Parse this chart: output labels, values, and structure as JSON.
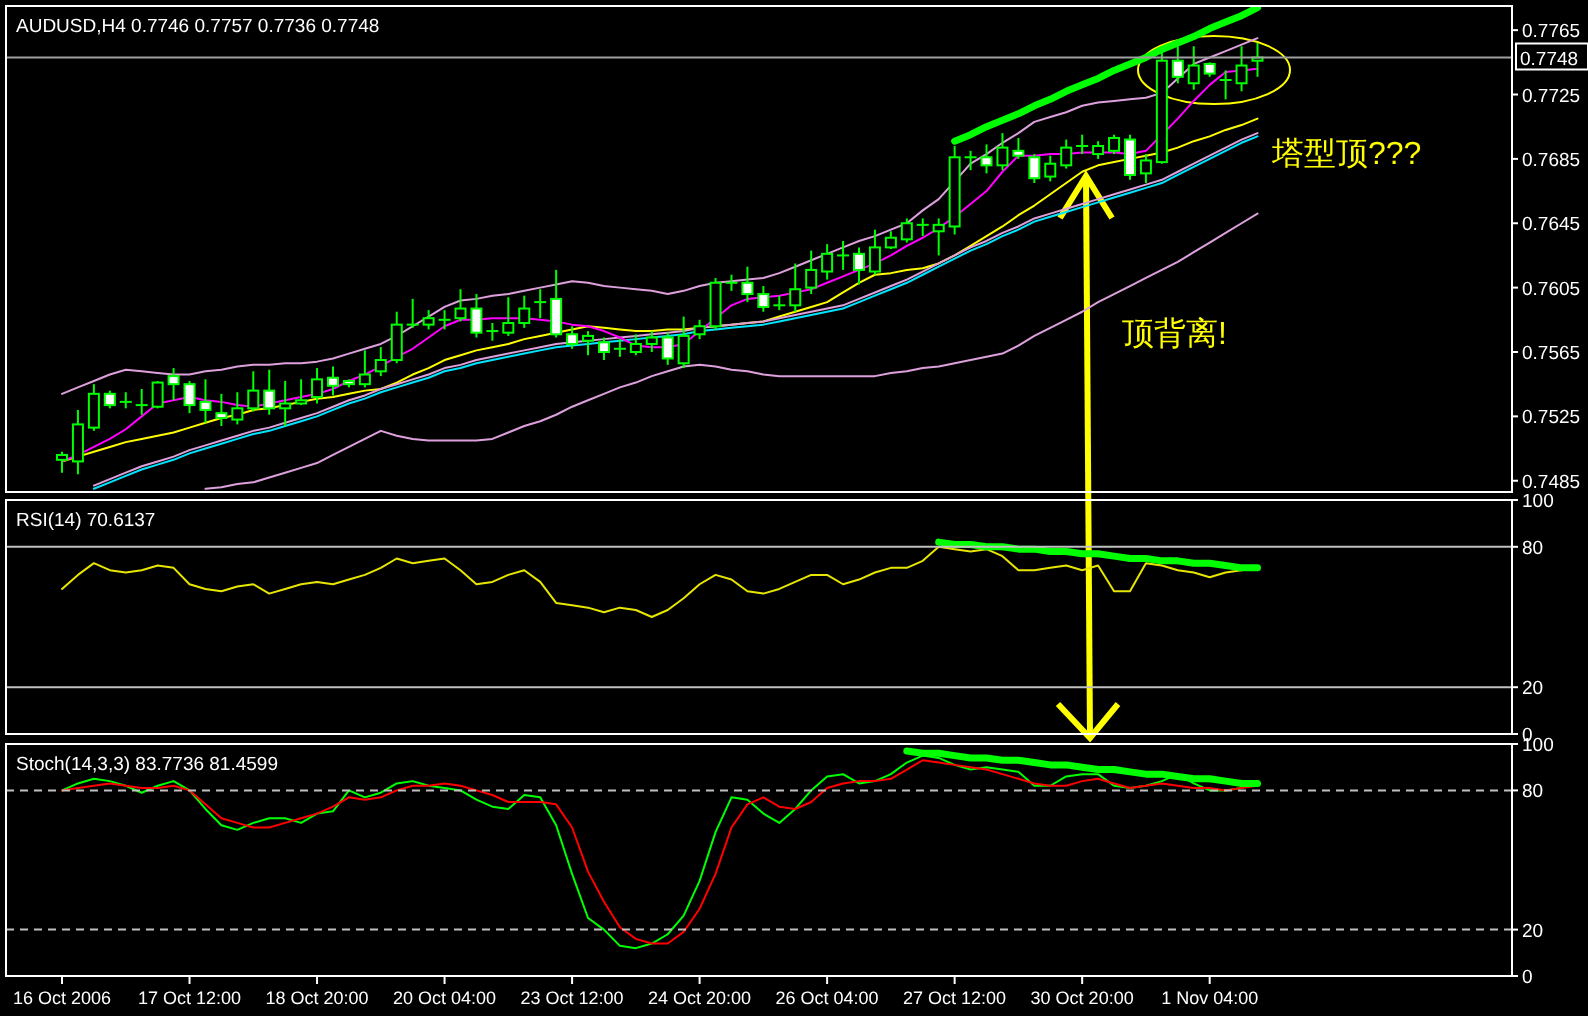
{
  "chart_data": [
    {
      "type": "candlestick",
      "title": "AUDUSD,H4 0.7746 0.7757 0.7736 0.7748",
      "color": "#00ff00",
      "categories": [
        null,
        null,
        null,
        null,
        null,
        null,
        null,
        null,
        null,
        null,
        null,
        null,
        null,
        null,
        null,
        null,
        null,
        null,
        null,
        null,
        null,
        null,
        null,
        null,
        null,
        null,
        null,
        null,
        null,
        null,
        null,
        null,
        null,
        null,
        null,
        null,
        null,
        null,
        null,
        null,
        null,
        null,
        null,
        null,
        null,
        null,
        null,
        null,
        null,
        null,
        null,
        null,
        null,
        null,
        null,
        null,
        null,
        null,
        null,
        null,
        null,
        null,
        null,
        null,
        null,
        null,
        null,
        null,
        null,
        null,
        null,
        null,
        null,
        null,
        null,
        null
      ],
      "ohlc": [
        [
          0.7498,
          0.7503,
          0.749,
          0.7501
        ],
        [
          0.7497,
          0.7529,
          0.7489,
          0.752
        ],
        [
          0.7518,
          0.7545,
          0.7516,
          0.7539
        ],
        [
          0.7539,
          0.7541,
          0.753,
          0.7532
        ],
        [
          0.7534,
          0.754,
          0.753,
          0.7533
        ],
        [
          0.7531,
          0.7542,
          0.7526,
          0.7532
        ],
        [
          0.7531,
          0.7547,
          0.753,
          0.7546
        ],
        [
          0.755,
          0.7555,
          0.7535,
          0.7545
        ],
        [
          0.7545,
          0.7547,
          0.7527,
          0.7532
        ],
        [
          0.7534,
          0.7548,
          0.7521,
          0.7529
        ],
        [
          0.7527,
          0.7539,
          0.7519,
          0.7524
        ],
        [
          0.7523,
          0.754,
          0.752,
          0.753
        ],
        [
          0.753,
          0.7553,
          0.7528,
          0.7541
        ],
        [
          0.7541,
          0.7554,
          0.7526,
          0.753
        ],
        [
          0.753,
          0.7547,
          0.7519,
          0.7533
        ],
        [
          0.7533,
          0.7548,
          0.7532,
          0.7535
        ],
        [
          0.7537,
          0.7555,
          0.7533,
          0.7548
        ],
        [
          0.7549,
          0.7556,
          0.7538,
          0.7544
        ],
        [
          0.7547,
          0.7548,
          0.7543,
          0.7545
        ],
        [
          0.7545,
          0.7566,
          0.7543,
          0.7551
        ],
        [
          0.7553,
          0.7568,
          0.755,
          0.756
        ],
        [
          0.756,
          0.759,
          0.7558,
          0.7582
        ],
        [
          0.7581,
          0.7598,
          0.758,
          0.7582
        ],
        [
          0.7582,
          0.7591,
          0.7579,
          0.7586
        ],
        [
          0.7585,
          0.7591,
          0.7579,
          0.7584
        ],
        [
          0.7586,
          0.7604,
          0.7584,
          0.7592
        ],
        [
          0.7592,
          0.7601,
          0.7574,
          0.7577
        ],
        [
          0.7577,
          0.7583,
          0.7572,
          0.7578
        ],
        [
          0.7577,
          0.7599,
          0.7575,
          0.7583
        ],
        [
          0.7583,
          0.76,
          0.758,
          0.7592
        ],
        [
          0.7596,
          0.7604,
          0.7586,
          0.7596
        ],
        [
          0.7598,
          0.7616,
          0.7574,
          0.7576
        ],
        [
          0.7576,
          0.7581,
          0.7567,
          0.757
        ],
        [
          0.7572,
          0.7578,
          0.7563,
          0.7575
        ],
        [
          0.7571,
          0.7574,
          0.756,
          0.7565
        ],
        [
          0.7567,
          0.7573,
          0.7562,
          0.7567
        ],
        [
          0.7565,
          0.7576,
          0.7563,
          0.757
        ],
        [
          0.757,
          0.7578,
          0.7565,
          0.7574
        ],
        [
          0.7574,
          0.7577,
          0.7557,
          0.7561
        ],
        [
          0.7558,
          0.7587,
          0.7555,
          0.7575
        ],
        [
          0.7576,
          0.7585,
          0.7573,
          0.7581
        ],
        [
          0.7581,
          0.7611,
          0.7579,
          0.7608
        ],
        [
          0.7607,
          0.7613,
          0.7603,
          0.7608
        ],
        [
          0.7608,
          0.7618,
          0.7596,
          0.7601
        ],
        [
          0.7601,
          0.7606,
          0.759,
          0.7593
        ],
        [
          0.7593,
          0.76,
          0.7591,
          0.7594
        ],
        [
          0.7594,
          0.762,
          0.759,
          0.7604
        ],
        [
          0.7605,
          0.7628,
          0.7601,
          0.7616
        ],
        [
          0.7615,
          0.7632,
          0.761,
          0.7626
        ],
        [
          0.7625,
          0.7634,
          0.7616,
          0.7624
        ],
        [
          0.7626,
          0.763,
          0.7607,
          0.7616
        ],
        [
          0.7615,
          0.7641,
          0.7613,
          0.763
        ],
        [
          0.763,
          0.764,
          0.7629,
          0.7636
        ],
        [
          0.7635,
          0.7648,
          0.7633,
          0.7645
        ],
        [
          0.7644,
          0.7648,
          0.7637,
          0.7643
        ],
        [
          0.764,
          0.7648,
          0.7625,
          0.7644
        ],
        [
          0.7643,
          0.7693,
          0.7638,
          0.7686
        ],
        [
          0.7686,
          0.769,
          0.7678,
          0.7685
        ],
        [
          0.7686,
          0.7694,
          0.7676,
          0.7681
        ],
        [
          0.7681,
          0.7701,
          0.7678,
          0.7692
        ],
        [
          0.769,
          0.7698,
          0.7685,
          0.7687
        ],
        [
          0.7686,
          0.7688,
          0.767,
          0.7673
        ],
        [
          0.7674,
          0.7687,
          0.7671,
          0.7682
        ],
        [
          0.7681,
          0.7697,
          0.7679,
          0.7692
        ],
        [
          0.7693,
          0.77,
          0.7688,
          0.7693
        ],
        [
          0.7688,
          0.7696,
          0.7685,
          0.7693
        ],
        [
          0.769,
          0.77,
          0.7688,
          0.7698
        ],
        [
          0.7697,
          0.77,
          0.7672,
          0.7675
        ],
        [
          0.7676,
          0.7688,
          0.767,
          0.7684
        ],
        [
          0.7683,
          0.7755,
          0.7682,
          0.7746
        ],
        [
          0.7746,
          0.7755,
          0.7732,
          0.7736
        ],
        [
          0.7732,
          0.7755,
          0.7728,
          0.7743
        ],
        [
          0.7744,
          0.7745,
          0.7736,
          0.7738
        ],
        [
          0.7734,
          0.774,
          0.7722,
          0.7733
        ],
        [
          0.7732,
          0.7755,
          0.7727,
          0.7743
        ],
        [
          0.7746,
          0.7757,
          0.7736,
          0.7748
        ]
      ],
      "series": [
        {
          "type": "line",
          "color": "#dda0dd",
          "values": [
            0.7539,
            0.7543,
            0.7547,
            0.7551,
            0.7554,
            0.7553,
            0.7552,
            0.7551,
            0.7551,
            0.7553,
            0.7554,
            0.7556,
            0.7557,
            0.7557,
            0.7558,
            0.7558,
            0.7559,
            0.7561,
            0.7564,
            0.7567,
            0.757,
            0.7575,
            0.7581,
            0.7587,
            0.7593,
            0.7597,
            0.7598,
            0.76,
            0.7601,
            0.7603,
            0.7605,
            0.7607,
            0.7609,
            0.7608,
            0.7606,
            0.7605,
            0.7604,
            0.7603,
            0.7601,
            0.7603,
            0.7606,
            0.7608,
            0.7609,
            0.761,
            0.7611,
            0.7614,
            0.7618,
            0.7622,
            0.7626,
            0.763,
            0.7634,
            0.7637,
            0.7641,
            0.7645,
            0.7653,
            0.766,
            0.7671,
            0.7682,
            0.7688,
            0.7695,
            0.7701,
            0.7708,
            0.7711,
            0.7714,
            0.7718,
            0.772,
            0.7721,
            0.7722,
            0.7723,
            0.7726,
            0.7735,
            0.7744,
            0.7748,
            0.7752,
            0.7756,
            0.776
          ]
        },
        {
          "type": "line",
          "color": "#dda0dd",
          "values": [
            null,
            null,
            null,
            null,
            null,
            null,
            null,
            null,
            null,
            0.748,
            0.7481,
            0.7483,
            0.7484,
            0.7487,
            0.749,
            0.7493,
            0.7496,
            0.7501,
            0.7506,
            0.7511,
            0.7516,
            0.7513,
            0.7511,
            0.751,
            0.751,
            0.751,
            0.751,
            0.7511,
            0.7515,
            0.7519,
            0.7522,
            0.7526,
            0.7531,
            0.7535,
            0.7539,
            0.7543,
            0.7546,
            0.755,
            0.7553,
            0.7556,
            0.7557,
            0.7556,
            0.7554,
            0.7553,
            0.7551,
            0.755,
            0.755,
            0.755,
            0.755,
            0.755,
            0.755,
            0.755,
            0.7552,
            0.7553,
            0.7555,
            0.7556,
            0.7558,
            0.756,
            0.7562,
            0.7564,
            0.7569,
            0.7575,
            0.758,
            0.7585,
            0.759,
            0.7596,
            0.7601,
            0.7606,
            0.7611,
            0.7616,
            0.7621,
            0.7627,
            0.7633,
            0.7639,
            0.7645,
            0.7651
          ]
        },
        {
          "type": "line",
          "color": "#ffff00",
          "values": [
            0.7497,
            0.75,
            0.7503,
            0.7506,
            0.7509,
            0.7511,
            0.7513,
            0.7515,
            0.7518,
            0.7521,
            0.7524,
            0.7526,
            0.7529,
            0.753,
            0.7532,
            0.7534,
            0.7536,
            0.7537,
            0.7539,
            0.7541,
            0.7542,
            0.7546,
            0.7551,
            0.7555,
            0.756,
            0.7563,
            0.7566,
            0.7568,
            0.757,
            0.7573,
            0.7575,
            0.7577,
            0.7579,
            0.7581,
            0.758,
            0.7579,
            0.7578,
            0.7578,
            0.7579,
            0.7579,
            0.758,
            0.7581,
            0.7582,
            0.7583,
            0.7584,
            0.7587,
            0.759,
            0.7593,
            0.7596,
            0.7602,
            0.7608,
            0.7613,
            0.7614,
            0.7616,
            0.7617,
            0.762,
            0.7625,
            0.7631,
            0.7637,
            0.7643,
            0.765,
            0.7656,
            0.7663,
            0.767,
            0.7677,
            0.7681,
            0.7683,
            0.7685,
            0.7687,
            0.7689,
            0.7692,
            0.7696,
            0.7699,
            0.7703,
            0.7706,
            0.771
          ]
        },
        {
          "type": "line",
          "color": "#dda0dd",
          "values": [
            null,
            null,
            0.7482,
            0.7486,
            0.749,
            0.7494,
            0.7497,
            0.75,
            0.7504,
            0.7507,
            0.751,
            0.7513,
            0.7516,
            0.7518,
            0.7521,
            0.7524,
            0.7527,
            0.7531,
            0.7535,
            0.7538,
            0.7542,
            0.7545,
            0.7548,
            0.7551,
            0.7555,
            0.7557,
            0.756,
            0.7562,
            0.7564,
            0.7566,
            0.7568,
            0.757,
            0.7571,
            0.7572,
            0.7573,
            0.7574,
            0.7575,
            0.7576,
            0.7577,
            0.7578,
            0.758,
            0.7581,
            0.7582,
            0.7583,
            0.7584,
            0.7586,
            0.7588,
            0.759,
            0.7592,
            0.7594,
            0.7598,
            0.7602,
            0.7606,
            0.761,
            0.7615,
            0.762,
            0.7625,
            0.763,
            0.7634,
            0.7639,
            0.7643,
            0.7648,
            0.7651,
            0.7654,
            0.7657,
            0.766,
            0.7663,
            0.7666,
            0.7669,
            0.7672,
            0.7677,
            0.7682,
            0.7687,
            0.7692,
            0.7697,
            0.7701
          ]
        },
        {
          "type": "line",
          "color": "#00e5ff",
          "values": [
            null,
            null,
            0.748,
            0.7484,
            0.7488,
            0.7492,
            0.7495,
            0.7498,
            0.7502,
            0.7505,
            0.7508,
            0.7511,
            0.7514,
            0.7516,
            0.7519,
            0.7522,
            0.7525,
            0.7529,
            0.7533,
            0.7536,
            0.754,
            0.7543,
            0.7546,
            0.7549,
            0.7553,
            0.7555,
            0.7558,
            0.756,
            0.7562,
            0.7564,
            0.7566,
            0.7568,
            0.7569,
            0.757,
            0.7571,
            0.7572,
            0.7573,
            0.7574,
            0.7575,
            0.7576,
            0.7578,
            0.7579,
            0.758,
            0.7581,
            0.7582,
            0.7584,
            0.7586,
            0.7588,
            0.759,
            0.7592,
            0.7596,
            0.76,
            0.7604,
            0.7608,
            0.7613,
            0.7618,
            0.7623,
            0.7628,
            0.7632,
            0.7637,
            0.7641,
            0.7646,
            0.7649,
            0.7652,
            0.7655,
            0.7658,
            0.7661,
            0.7664,
            0.7667,
            0.767,
            0.7675,
            0.768,
            0.7685,
            0.769,
            0.7695,
            0.7699
          ]
        },
        {
          "type": "line",
          "color": "#ff00ff",
          "values": [
            0.7497,
            0.7501,
            0.7506,
            0.7511,
            0.7517,
            0.7525,
            0.7533,
            0.7535,
            0.7537,
            0.7535,
            0.7534,
            0.7532,
            0.7531,
            0.7533,
            0.7535,
            0.7537,
            0.7539,
            0.7542,
            0.7547,
            0.7551,
            0.7556,
            0.7562,
            0.7567,
            0.7574,
            0.7581,
            0.7585,
            0.7585,
            0.7586,
            0.7586,
            0.7586,
            0.7585,
            0.7584,
            0.7582,
            0.7581,
            0.7578,
            0.7574,
            0.7569,
            0.7568,
            0.7568,
            0.757,
            0.7578,
            0.7586,
            0.7594,
            0.7598,
            0.7599,
            0.76,
            0.7602,
            0.7604,
            0.7608,
            0.7612,
            0.7616,
            0.762,
            0.7625,
            0.7631,
            0.7636,
            0.7642,
            0.7649,
            0.7657,
            0.7665,
            0.7677,
            0.7687,
            0.7687,
            0.7688,
            0.7688,
            0.7689,
            0.7689,
            0.7689,
            0.7688,
            0.769,
            0.77,
            0.771,
            0.7721,
            0.7731,
            0.7739,
            0.774,
            0.7741
          ]
        },
        {
          "type": "line",
          "color": "#00ff00",
          "values": [
            null,
            null,
            null,
            null,
            null,
            null,
            null,
            null,
            null,
            null,
            null,
            null,
            null,
            null,
            null,
            null,
            null,
            null,
            null,
            null,
            null,
            null,
            null,
            null,
            null,
            null,
            null,
            null,
            null,
            null,
            null,
            null,
            null,
            null,
            null,
            null,
            null,
            null,
            null,
            null,
            null,
            null,
            null,
            null,
            null,
            null,
            null,
            null,
            null,
            null,
            null,
            null,
            null,
            null,
            null,
            null,
            0.7696,
            0.77,
            0.7705,
            0.7709,
            0.7713,
            0.7718,
            0.7722,
            0.7727,
            0.7731,
            0.7735,
            0.774,
            0.7744,
            0.7748,
            0.7753,
            0.7757,
            0.7761,
            0.7766,
            0.777,
            0.7774,
            0.7779
          ]
        }
      ],
      "ylim": [
        0.7478,
        0.778
      ],
      "yticks": [
        0.7485,
        0.7525,
        0.7565,
        0.7605,
        0.7645,
        0.7685,
        0.7725,
        0.7765
      ],
      "tick_labels": "y",
      "ref_lines": [
        {
          "axis": "y",
          "value": 0.7748,
          "label": "0.7748",
          "color": "#a0a0a0"
        }
      ],
      "annotations": [
        "塔型顶???",
        "顶背离!"
      ]
    },
    {
      "type": "line",
      "title": "RSI(14) 70.6137",
      "categories": [
        null,
        null,
        null,
        null,
        null,
        null,
        null,
        null,
        null,
        null,
        null,
        null,
        null,
        null,
        null,
        null,
        null,
        null,
        null,
        null,
        null,
        null,
        null,
        null,
        null,
        null,
        null,
        null,
        null,
        null,
        null,
        null,
        null,
        null,
        null,
        null,
        null,
        null,
        null,
        null,
        null,
        null,
        null,
        null,
        null,
        null,
        null,
        null,
        null,
        null,
        null,
        null,
        null,
        null,
        null,
        null,
        null,
        null,
        null,
        null,
        null,
        null,
        null,
        null,
        null,
        null,
        null,
        null,
        null,
        null,
        null,
        null,
        null,
        null,
        null,
        null
      ],
      "series": [
        {
          "type": "line",
          "color": "#e6e600",
          "values": [
            62,
            68,
            73,
            70,
            69,
            70,
            72,
            71,
            64,
            62,
            61,
            63,
            64,
            60,
            62,
            64,
            65,
            64,
            66,
            68,
            71,
            75,
            73,
            74,
            75,
            70,
            64,
            65,
            68,
            70,
            65,
            56,
            55,
            54,
            52,
            54,
            53,
            50,
            53,
            58,
            64,
            68,
            66,
            61,
            60,
            62,
            65,
            68,
            68,
            64,
            66,
            69,
            71,
            71,
            74,
            80,
            79,
            78,
            79,
            76,
            70,
            70,
            71,
            72,
            70,
            72,
            61,
            61,
            73,
            72,
            70,
            69,
            67,
            69,
            70,
            71
          ]
        },
        {
          "type": "line",
          "color": "#00ff00",
          "values": [
            null,
            null,
            null,
            null,
            null,
            null,
            null,
            null,
            null,
            null,
            null,
            null,
            null,
            null,
            null,
            null,
            null,
            null,
            null,
            null,
            null,
            null,
            null,
            null,
            null,
            null,
            null,
            null,
            null,
            null,
            null,
            null,
            null,
            null,
            null,
            null,
            null,
            null,
            null,
            null,
            null,
            null,
            null,
            null,
            null,
            null,
            null,
            null,
            null,
            null,
            null,
            null,
            null,
            null,
            null,
            82,
            81,
            81,
            80,
            80,
            79,
            79,
            78,
            78,
            77,
            77,
            76,
            75,
            75,
            74,
            74,
            73,
            73,
            72,
            71,
            71
          ]
        }
      ],
      "ylim": [
        0,
        100
      ],
      "yticks": [
        0,
        20,
        80,
        100
      ],
      "tick_labels": "y",
      "ref_lines": [
        {
          "axis": "y",
          "value": 20,
          "color": "#c0c0c0",
          "line_style": "solid"
        },
        {
          "axis": "y",
          "value": 80,
          "color": "#c0c0c0",
          "line_style": "solid"
        }
      ]
    },
    {
      "type": "line",
      "title": "Stoch(14,3,3) 83.7736 81.4599",
      "categories": [
        "16 Oct 2006",
        null,
        null,
        null,
        null,
        null,
        null,
        null,
        "17 Oct 12:00",
        null,
        null,
        null,
        null,
        null,
        null,
        null,
        "18 Oct 20:00",
        null,
        null,
        null,
        null,
        null,
        null,
        null,
        "20 Oct 04:00",
        null,
        null,
        null,
        null,
        null,
        null,
        null,
        "23 Oct 12:00",
        null,
        null,
        null,
        null,
        null,
        null,
        null,
        "24 Oct 20:00",
        null,
        null,
        null,
        null,
        null,
        null,
        null,
        "26 Oct 04:00",
        null,
        null,
        null,
        null,
        null,
        null,
        null,
        "27 Oct 12:00",
        null,
        null,
        null,
        null,
        null,
        null,
        null,
        "30 Oct 20:00",
        null,
        null,
        null,
        null,
        null,
        null,
        null,
        "1 Nov 04:00",
        null,
        null,
        null
      ],
      "series": [
        {
          "type": "line",
          "color": "#00ff00",
          "values": [
            80,
            83,
            85,
            84,
            82,
            79,
            82,
            84,
            80,
            72,
            65,
            63,
            66,
            68,
            68,
            66,
            70,
            71,
            80,
            77,
            79,
            83,
            84,
            82,
            81,
            80,
            76,
            73,
            72,
            78,
            77,
            65,
            44,
            25,
            20,
            13,
            12,
            14,
            18,
            26,
            41,
            62,
            77,
            76,
            70,
            66,
            72,
            80,
            86,
            87,
            83,
            84,
            87,
            92,
            95,
            94,
            91,
            89,
            90,
            89,
            88,
            82,
            82,
            86,
            87,
            87,
            82,
            81,
            82,
            84,
            87,
            83,
            80,
            80,
            81,
            84
          ]
        },
        {
          "type": "line",
          "color": "#ff0000",
          "values": [
            80,
            81,
            82,
            83,
            82,
            81,
            81,
            82,
            80,
            74,
            68,
            66,
            64,
            64,
            66,
            68,
            70,
            73,
            77,
            76,
            77,
            80,
            82,
            82,
            83,
            82,
            80,
            78,
            75,
            75,
            75,
            74,
            64,
            45,
            32,
            21,
            16,
            14,
            14,
            19,
            29,
            44,
            64,
            74,
            77,
            73,
            72,
            75,
            81,
            83,
            84,
            84,
            85,
            89,
            93,
            92,
            91,
            90,
            89,
            87,
            85,
            83,
            82,
            82,
            84,
            85,
            83,
            81,
            82,
            83,
            82,
            81,
            81,
            80,
            81,
            82
          ]
        },
        {
          "type": "line",
          "color": "#00ff00",
          "values": [
            null,
            null,
            null,
            null,
            null,
            null,
            null,
            null,
            null,
            null,
            null,
            null,
            null,
            null,
            null,
            null,
            null,
            null,
            null,
            null,
            null,
            null,
            null,
            null,
            null,
            null,
            null,
            null,
            null,
            null,
            null,
            null,
            null,
            null,
            null,
            null,
            null,
            null,
            null,
            null,
            null,
            null,
            null,
            null,
            null,
            null,
            null,
            null,
            null,
            null,
            null,
            null,
            null,
            97,
            96,
            96,
            95,
            94,
            94,
            93,
            93,
            92,
            91,
            91,
            90,
            89,
            89,
            88,
            87,
            87,
            86,
            85,
            85,
            84,
            83,
            83
          ]
        }
      ],
      "ylim": [
        0,
        100
      ],
      "yticks": [
        0,
        20,
        80,
        100
      ],
      "ref_lines": [
        {
          "axis": "y",
          "value": 20,
          "color": "#c0c0c0",
          "line_style": "dashed"
        },
        {
          "axis": "y",
          "value": 80,
          "color": "#c0c0c0",
          "line_style": "dashed"
        }
      ]
    }
  ]
}
